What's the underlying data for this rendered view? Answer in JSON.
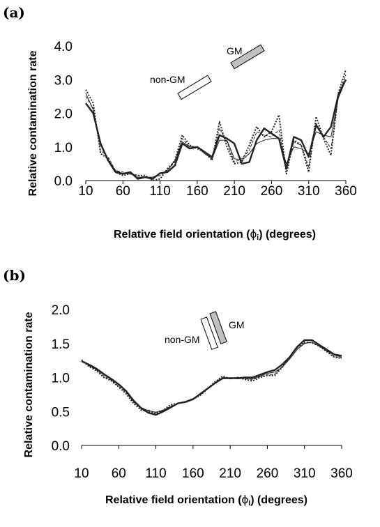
{
  "chart_data": [
    {
      "type": "line",
      "panel_label": "(a)",
      "ylabel": "Relative contamination rate",
      "xlabel": "Relative field orientation (ϕᵢ) (degrees)",
      "xlabel_parts": {
        "before": "Relative field orientation (",
        "symbol": "ϕ",
        "sub": "i",
        "after": ") (degrees)"
      },
      "xlim": [
        10,
        360
      ],
      "ylim": [
        0,
        4
      ],
      "x_ticks": [
        "10",
        "60",
        "110",
        "160",
        "210",
        "260",
        "310",
        "360"
      ],
      "y_ticks": [
        "0.0",
        "1.0",
        "2.0",
        "3.0",
        "4.0"
      ],
      "annotations": {
        "gm": "GM",
        "non_gm": "non-GM"
      },
      "x": [
        10,
        20,
        30,
        40,
        50,
        60,
        70,
        80,
        90,
        100,
        110,
        120,
        130,
        140,
        150,
        160,
        170,
        180,
        190,
        200,
        210,
        220,
        230,
        240,
        250,
        260,
        270,
        280,
        290,
        300,
        310,
        320,
        330,
        340,
        350,
        360
      ],
      "series": [
        {
          "style": "thick-solid",
          "values": [
            2.3,
            2.0,
            1.1,
            0.6,
            0.25,
            0.2,
            0.25,
            0.05,
            0.1,
            0.05,
            0.22,
            0.25,
            0.45,
            1.1,
            0.95,
            1.0,
            0.85,
            0.7,
            1.35,
            1.25,
            1.1,
            0.5,
            0.55,
            1.2,
            1.55,
            1.4,
            1.25,
            0.35,
            1.3,
            1.2,
            0.7,
            1.65,
            1.3,
            1.6,
            2.55,
            3.0
          ]
        },
        {
          "style": "thin-solid",
          "values": [
            2.6,
            2.1,
            1.05,
            0.6,
            0.3,
            0.2,
            0.2,
            0.1,
            0.1,
            0.1,
            0.2,
            0.3,
            0.6,
            1.15,
            1.0,
            1.0,
            0.8,
            0.65,
            1.2,
            1.2,
            0.65,
            0.6,
            0.8,
            1.1,
            1.2,
            1.25,
            1.25,
            0.5,
            1.0,
            0.95,
            0.8,
            1.45,
            1.35,
            1.3,
            2.45,
            3.0
          ]
        },
        {
          "style": "dotted",
          "values": [
            2.7,
            2.3,
            0.8,
            0.65,
            0.25,
            0.15,
            0.2,
            0.15,
            0.15,
            0.0,
            0.05,
            0.35,
            0.6,
            1.35,
            1.05,
            0.95,
            0.85,
            0.6,
            1.75,
            1.0,
            0.5,
            0.55,
            1.05,
            1.6,
            1.3,
            1.45,
            1.95,
            0.2,
            1.2,
            1.05,
            0.25,
            1.9,
            1.25,
            0.75,
            2.6,
            3.3
          ]
        },
        {
          "style": "dashed",
          "values": [
            2.5,
            2.15,
            0.9,
            0.7,
            0.3,
            0.25,
            0.2,
            0.15,
            0.1,
            0.1,
            0.15,
            0.3,
            0.55,
            1.25,
            1.0,
            1.0,
            0.8,
            0.65,
            1.55,
            1.15,
            0.55,
            0.65,
            0.9,
            1.45,
            1.35,
            1.3,
            1.5,
            0.35,
            1.15,
            1.05,
            0.4,
            1.7,
            1.3,
            0.95,
            2.5,
            3.15
          ]
        }
      ]
    },
    {
      "type": "line",
      "panel_label": "(b)",
      "ylabel": "Relative contamination rate",
      "xlabel": "Relative field orientation (ϕᵢ) (degrees)",
      "xlabel_parts": {
        "before": "Relative field orientation (",
        "symbol": "ϕ",
        "sub": "i",
        "after": ") (degrees)"
      },
      "xlim": [
        10,
        360
      ],
      "ylim": [
        0,
        2
      ],
      "x_ticks": [
        "10",
        "60",
        "110",
        "160",
        "210",
        "260",
        "310",
        "360"
      ],
      "y_ticks": [
        "0.0",
        "0.5",
        "1.0",
        "1.5",
        "2.0"
      ],
      "annotations": {
        "gm": "GM",
        "non_gm": "non-GM"
      },
      "x": [
        10,
        20,
        30,
        40,
        50,
        60,
        70,
        80,
        90,
        100,
        110,
        120,
        130,
        140,
        150,
        160,
        170,
        180,
        190,
        200,
        210,
        220,
        230,
        240,
        250,
        260,
        270,
        280,
        290,
        300,
        310,
        320,
        330,
        340,
        350,
        360
      ],
      "series": [
        {
          "style": "thick-solid",
          "values": [
            1.24,
            1.19,
            1.13,
            1.05,
            0.98,
            0.9,
            0.8,
            0.66,
            0.55,
            0.48,
            0.45,
            0.5,
            0.56,
            0.62,
            0.64,
            0.68,
            0.76,
            0.84,
            0.92,
            0.99,
            0.99,
            0.99,
            1.0,
            1.0,
            1.04,
            1.08,
            1.11,
            1.19,
            1.3,
            1.45,
            1.55,
            1.55,
            1.48,
            1.41,
            1.34,
            1.32
          ]
        },
        {
          "style": "thin-solid",
          "values": [
            1.24,
            1.18,
            1.12,
            1.04,
            0.97,
            0.89,
            0.79,
            0.66,
            0.56,
            0.51,
            0.49,
            0.52,
            0.57,
            0.62,
            0.65,
            0.69,
            0.76,
            0.84,
            0.92,
            0.98,
            0.99,
            0.98,
            0.99,
            0.98,
            1.02,
            1.06,
            1.08,
            1.15,
            1.27,
            1.41,
            1.5,
            1.52,
            1.46,
            1.39,
            1.33,
            1.3
          ]
        },
        {
          "style": "dotted",
          "values": [
            1.26,
            1.16,
            1.1,
            1.0,
            0.95,
            0.86,
            0.76,
            0.62,
            0.52,
            0.5,
            0.47,
            0.52,
            0.6,
            0.62,
            0.64,
            0.68,
            0.74,
            0.84,
            0.94,
            1.02,
            0.98,
            1.0,
            0.97,
            0.95,
            1.0,
            1.03,
            1.03,
            1.15,
            1.3,
            1.44,
            1.52,
            1.51,
            1.46,
            1.38,
            1.3,
            1.28
          ]
        },
        {
          "style": "dashed",
          "values": [
            1.25,
            1.17,
            1.11,
            1.02,
            0.96,
            0.87,
            0.78,
            0.64,
            0.54,
            0.52,
            0.48,
            0.51,
            0.58,
            0.62,
            0.64,
            0.68,
            0.75,
            0.84,
            0.93,
            1.0,
            0.98,
            0.99,
            0.98,
            0.97,
            1.01,
            1.04,
            1.05,
            1.16,
            1.29,
            1.43,
            1.51,
            1.52,
            1.46,
            1.39,
            1.31,
            1.29
          ]
        }
      ]
    }
  ]
}
